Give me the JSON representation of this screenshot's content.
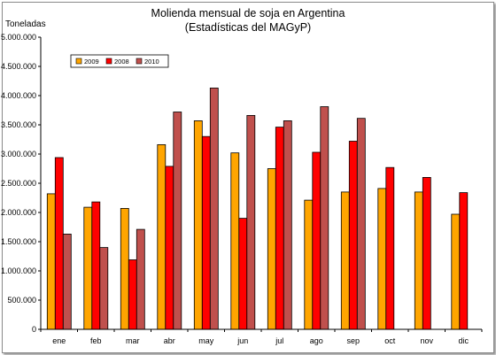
{
  "chart_data": {
    "type": "bar",
    "title": "Molienda mensual de soja en Argentina",
    "subtitle": "(Estadísticas del MAGyP)",
    "ylabel": "Toneladas",
    "xlabel": "",
    "ylim": [
      0,
      5000000
    ],
    "ytick_step": 500000,
    "yticks": [
      "0",
      "500.000",
      "1.000.000",
      "1.500.000",
      "2.000.000",
      "2.500.000",
      "3.000.000",
      "3.500.000",
      "4.000.000",
      "4.500.000",
      "5.000.000"
    ],
    "grid": false,
    "legend_position": "top-left",
    "categories": [
      "ene",
      "feb",
      "mar",
      "abr",
      "may",
      "jun",
      "jul",
      "ago",
      "sep",
      "oct",
      "nov",
      "dic"
    ],
    "series": [
      {
        "name": "2009",
        "color": "#FFA500",
        "values": [
          2320000,
          2090000,
          2070000,
          3160000,
          3570000,
          3020000,
          2750000,
          2210000,
          2350000,
          2410000,
          2350000,
          1970000
        ]
      },
      {
        "name": "2008",
        "color": "#FF0000",
        "values": [
          2940000,
          2180000,
          1190000,
          2790000,
          3300000,
          1900000,
          3460000,
          3030000,
          3220000,
          2770000,
          2600000,
          2340000
        ]
      },
      {
        "name": "2010",
        "color": "#C0504D",
        "values": [
          1630000,
          1400000,
          1710000,
          3720000,
          4130000,
          3660000,
          3570000,
          3810000,
          3610000,
          null,
          null,
          null
        ]
      }
    ]
  }
}
